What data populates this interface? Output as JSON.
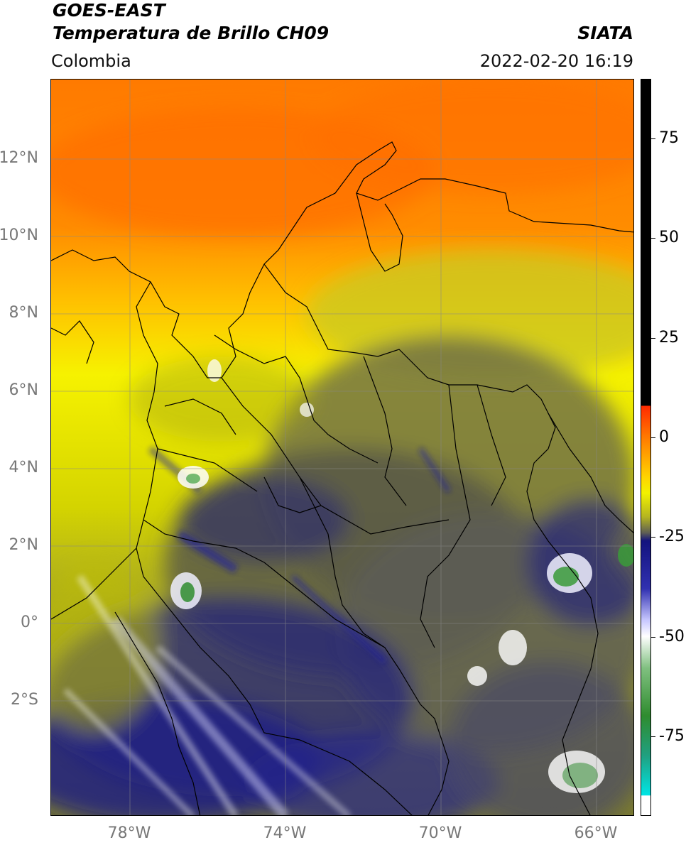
{
  "header": {
    "line1": "GOES-EAST",
    "line2": "Temperatura de Brillo CH09",
    "org": "SIATA",
    "region": "Colombia",
    "datetime": "2022-02-20 16:19"
  },
  "map": {
    "lat_labels": [
      "12°N",
      "10°N",
      "8°N",
      "6°N",
      "4°N",
      "2°N",
      "0°",
      "2°S"
    ],
    "lon_labels": [
      "78°W",
      "74°W",
      "70°W",
      "66°W"
    ],
    "colors": {
      "orange": "#ff7a00",
      "yellow": "#f2f200",
      "olive": "#9a9a33",
      "gray": "#5e5e55",
      "navy": "#13137e",
      "white": "#ffffff",
      "green": "#2f8c2f"
    }
  },
  "colorbar": {
    "ticks": [
      "75",
      "50",
      "25",
      "0",
      "-25",
      "-50",
      "-75"
    ],
    "tick_values": [
      75,
      50,
      25,
      0,
      -25,
      -50,
      -75
    ],
    "range": [
      -95,
      90
    ]
  }
}
